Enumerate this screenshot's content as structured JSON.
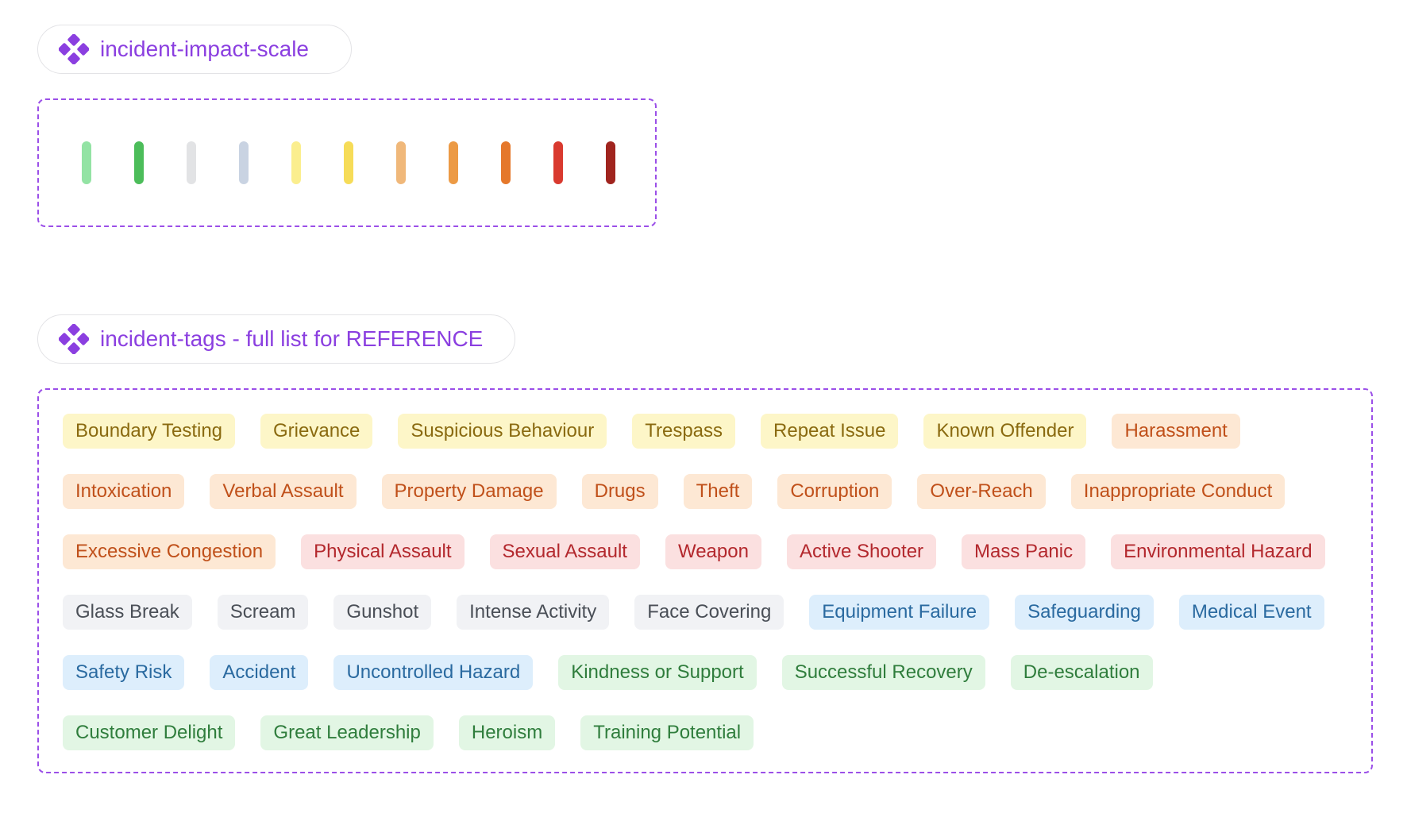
{
  "scale": {
    "label": "incident-impact-scale",
    "icon": "component-icon",
    "colors": [
      "#93e3a4",
      "#4cbd5a",
      "#e2e3e5",
      "#c9d3e2",
      "#fbee8e",
      "#f6dc58",
      "#f0b87a",
      "#ec9a45",
      "#e5782b",
      "#d93a2f",
      "#a0241e"
    ]
  },
  "tags": {
    "label": "incident-tags - full list for REFERENCE",
    "icon": "component-icon",
    "items": [
      {
        "label": "Boundary Testing",
        "color": "yellow"
      },
      {
        "label": "Grievance",
        "color": "yellow"
      },
      {
        "label": "Suspicious Behaviour",
        "color": "yellow"
      },
      {
        "label": "Trespass",
        "color": "yellow"
      },
      {
        "label": "Repeat Issue",
        "color": "yellow"
      },
      {
        "label": "Known Offender",
        "color": "yellow"
      },
      {
        "label": "Harassment",
        "color": "orange"
      },
      {
        "label": "Intoxication",
        "color": "orange"
      },
      {
        "label": "Verbal Assault",
        "color": "orange"
      },
      {
        "label": "Property Damage",
        "color": "orange"
      },
      {
        "label": "Drugs",
        "color": "orange"
      },
      {
        "label": "Theft",
        "color": "orange"
      },
      {
        "label": "Corruption",
        "color": "orange"
      },
      {
        "label": "Over-Reach",
        "color": "orange"
      },
      {
        "label": "Inappropriate Conduct",
        "color": "orange"
      },
      {
        "label": "Excessive Congestion",
        "color": "orange"
      },
      {
        "label": "Physical Assault",
        "color": "red"
      },
      {
        "label": "Sexual Assault",
        "color": "red"
      },
      {
        "label": "Weapon",
        "color": "red"
      },
      {
        "label": "Active Shooter",
        "color": "red"
      },
      {
        "label": "Mass Panic",
        "color": "red"
      },
      {
        "label": "Environmental Hazard",
        "color": "red"
      },
      {
        "label": "Glass Break",
        "color": "gray"
      },
      {
        "label": "Scream",
        "color": "gray"
      },
      {
        "label": "Gunshot",
        "color": "gray"
      },
      {
        "label": "Intense Activity",
        "color": "gray"
      },
      {
        "label": "Face Covering",
        "color": "gray"
      },
      {
        "label": "Equipment Failure",
        "color": "blue"
      },
      {
        "label": "Safeguarding",
        "color": "blue"
      },
      {
        "label": "Medical Event",
        "color": "blue"
      },
      {
        "label": "Safety Risk",
        "color": "blue"
      },
      {
        "label": "Accident",
        "color": "blue"
      },
      {
        "label": "Uncontrolled Hazard",
        "color": "blue"
      },
      {
        "label": "Kindness or Support",
        "color": "green"
      },
      {
        "label": "Successful Recovery",
        "color": "green"
      },
      {
        "label": "De-escalation",
        "color": "green"
      },
      {
        "label": "Customer Delight",
        "color": "green"
      },
      {
        "label": "Great Leadership",
        "color": "green"
      },
      {
        "label": "Heroism",
        "color": "green"
      },
      {
        "label": "Training Potential",
        "color": "green"
      }
    ]
  }
}
